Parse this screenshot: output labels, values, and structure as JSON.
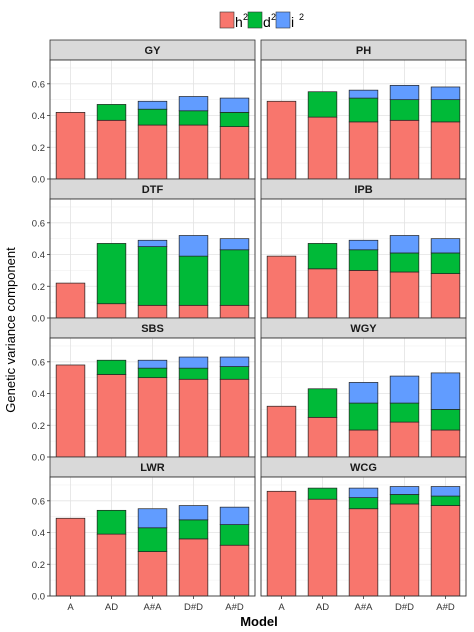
{
  "chart_data": {
    "type": "bar",
    "stacked": true,
    "ylabel": "Genetic variance component",
    "xlabel": "Model",
    "categories": [
      "A",
      "AD",
      "A#A",
      "D#D",
      "A#D"
    ],
    "ylim": [
      0,
      0.75
    ],
    "yticks": [
      0.0,
      0.2,
      0.4,
      0.6
    ],
    "ytick_labels": [
      "0.0",
      "0.2",
      "0.4",
      "0.6"
    ],
    "grid": true,
    "legend_position": "top",
    "legend": [
      {
        "base": "h",
        "sup": "2",
        "color": "#F8766D"
      },
      {
        "base": "d",
        "sup": "2",
        "color": "#00BA38"
      },
      {
        "base": "i",
        "sup": "2",
        "color": "#619CFF"
      }
    ],
    "facets": [
      {
        "title": "GY",
        "h2": [
          0.42,
          0.37,
          0.34,
          0.34,
          0.33
        ],
        "d2": [
          0,
          0.1,
          0.1,
          0.09,
          0.09
        ],
        "i2": [
          0,
          0,
          0.05,
          0.09,
          0.09
        ]
      },
      {
        "title": "PH",
        "h2": [
          0.49,
          0.39,
          0.36,
          0.37,
          0.36
        ],
        "d2": [
          0,
          0.16,
          0.15,
          0.13,
          0.14
        ],
        "i2": [
          0,
          0,
          0.05,
          0.09,
          0.08
        ]
      },
      {
        "title": "DTF",
        "h2": [
          0.22,
          0.09,
          0.08,
          0.08,
          0.08
        ],
        "d2": [
          0,
          0.38,
          0.37,
          0.31,
          0.35
        ],
        "i2": [
          0,
          0,
          0.04,
          0.13,
          0.07
        ]
      },
      {
        "title": "IPB",
        "h2": [
          0.39,
          0.31,
          0.3,
          0.29,
          0.28
        ],
        "d2": [
          0,
          0.16,
          0.13,
          0.12,
          0.13
        ],
        "i2": [
          0,
          0,
          0.06,
          0.11,
          0.09
        ]
      },
      {
        "title": "SBS",
        "h2": [
          0.58,
          0.52,
          0.5,
          0.49,
          0.49
        ],
        "d2": [
          0,
          0.09,
          0.06,
          0.07,
          0.08
        ],
        "i2": [
          0,
          0,
          0.05,
          0.07,
          0.06
        ]
      },
      {
        "title": "WGY",
        "h2": [
          0.32,
          0.25,
          0.17,
          0.22,
          0.17
        ],
        "d2": [
          0,
          0.18,
          0.17,
          0.12,
          0.13
        ],
        "i2": [
          0,
          0,
          0.13,
          0.17,
          0.23
        ]
      },
      {
        "title": "LWR",
        "h2": [
          0.49,
          0.39,
          0.28,
          0.36,
          0.32
        ],
        "d2": [
          0,
          0.15,
          0.15,
          0.12,
          0.13
        ],
        "i2": [
          0,
          0,
          0.12,
          0.09,
          0.11
        ]
      },
      {
        "title": "WCG",
        "h2": [
          0.66,
          0.61,
          0.55,
          0.58,
          0.57
        ],
        "d2": [
          0,
          0.07,
          0.07,
          0.06,
          0.06
        ],
        "i2": [
          0,
          0,
          0.06,
          0.05,
          0.06
        ]
      }
    ]
  }
}
